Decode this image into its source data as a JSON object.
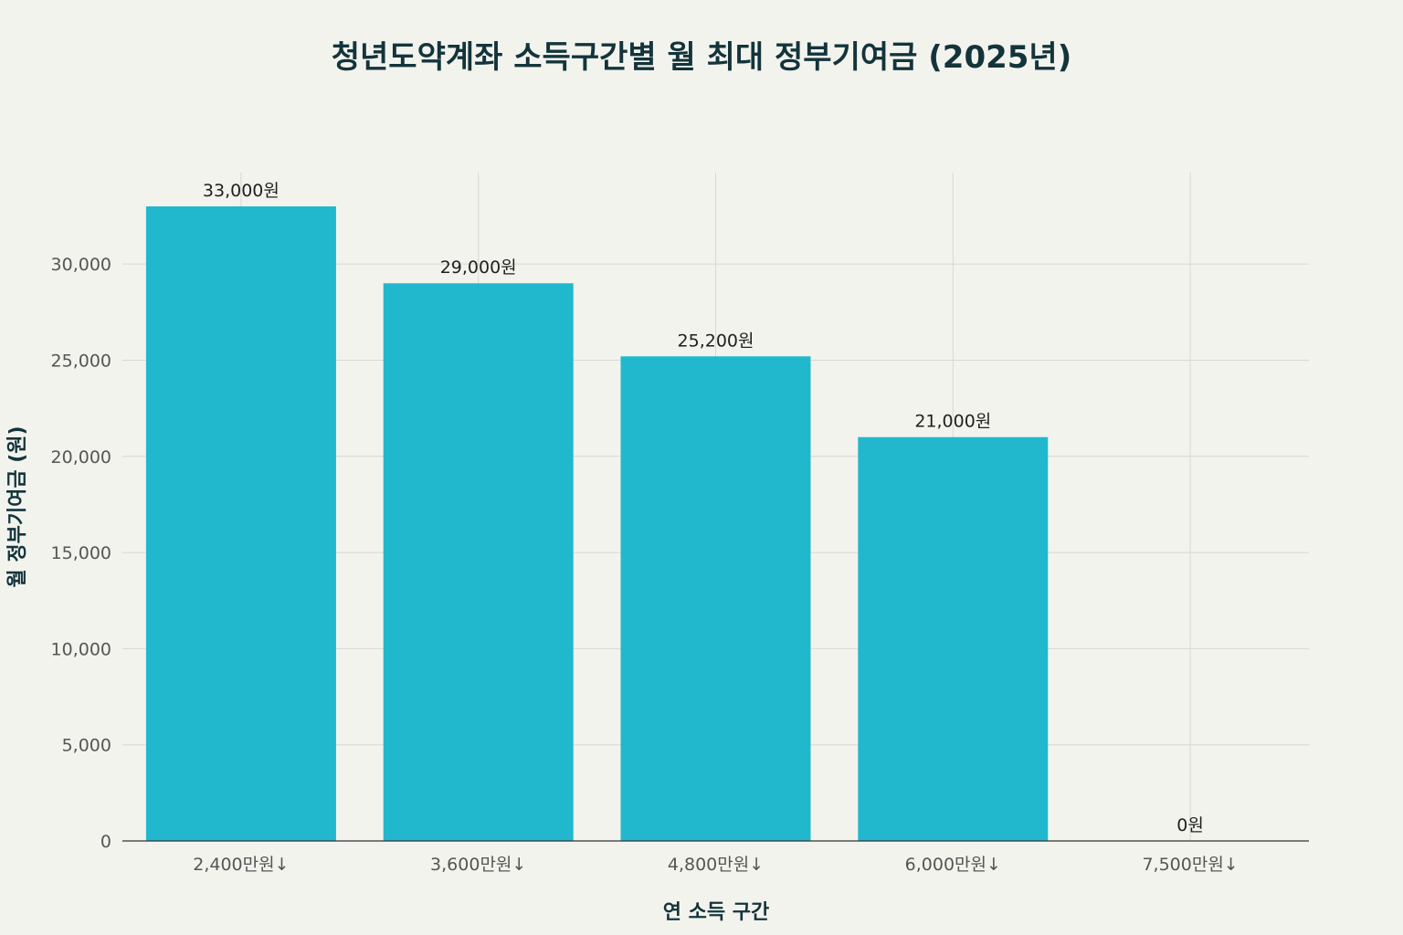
{
  "chart_data": {
    "type": "bar",
    "title": "청년도약계좌 소득구간별 월 최대 정부기여금 (2025년)",
    "xlabel": "연 소득 구간",
    "ylabel": "월 정부기여금 (원)",
    "categories": [
      "2,400만원↓",
      "3,600만원↓",
      "4,800만원↓",
      "6,000만원↓",
      "7,500만원↓"
    ],
    "values": [
      33000,
      29000,
      25200,
      21000,
      0
    ],
    "data_labels": [
      "33,000원",
      "29,000원",
      "25,200원",
      "21,000원",
      "0원"
    ],
    "yticks": [
      0,
      5000,
      10000,
      15000,
      20000,
      25000,
      30000
    ],
    "ytick_labels": [
      "0",
      "5,000",
      "10,000",
      "15,000",
      "20,000",
      "25,000",
      "30,000"
    ],
    "ylim": [
      0,
      34500
    ],
    "grid": true,
    "legend": "none",
    "bar_color": "#21b8cd",
    "text_color": "#13343b",
    "background_color": "#f3f3ee"
  }
}
